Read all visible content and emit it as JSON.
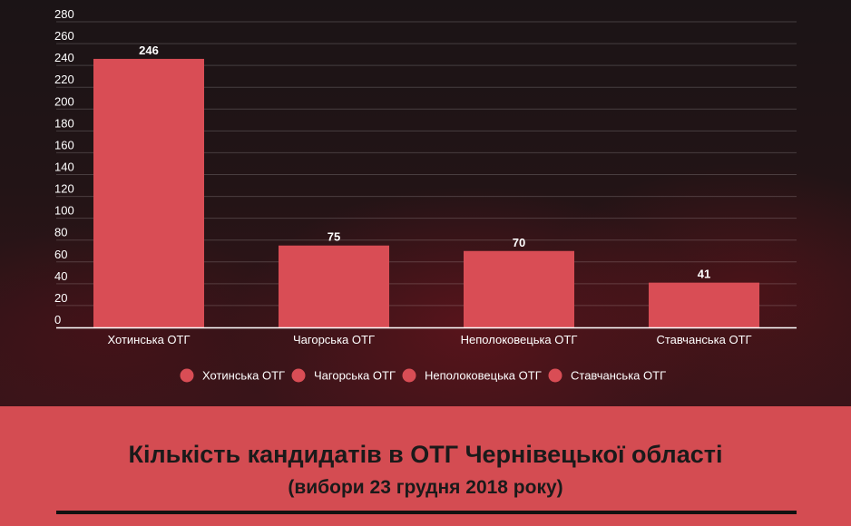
{
  "chart_data": {
    "type": "bar",
    "categories": [
      "Хотинська ОТГ",
      "Чагорська ОТГ",
      "Неполоковецька ОТГ",
      "Ставчанська ОТГ"
    ],
    "values": [
      246,
      75,
      70,
      41
    ],
    "data_labels": [
      "246",
      "75",
      "70",
      "41"
    ],
    "yticks": [
      0,
      20,
      40,
      60,
      80,
      100,
      120,
      140,
      160,
      180,
      200,
      220,
      240,
      260,
      280
    ],
    "ylim": [
      0,
      280
    ],
    "grid": true,
    "legend_position": "bottom",
    "legend": [
      "Хотинська ОТГ",
      "Чагорська ОТГ",
      "Неполоковецька ОТГ",
      "Ставчанська ОТГ"
    ],
    "bar_color": "#d94d55",
    "title": "Кількість кандидатів в ОТГ Чернівецької області",
    "subtitle": "(вибори 23 грудня 2018 року)"
  },
  "colors": {
    "banner": "#d44c52",
    "bar": "#d94d55",
    "text_dark": "#1a1a1a",
    "text_light": "#ffffff"
  }
}
